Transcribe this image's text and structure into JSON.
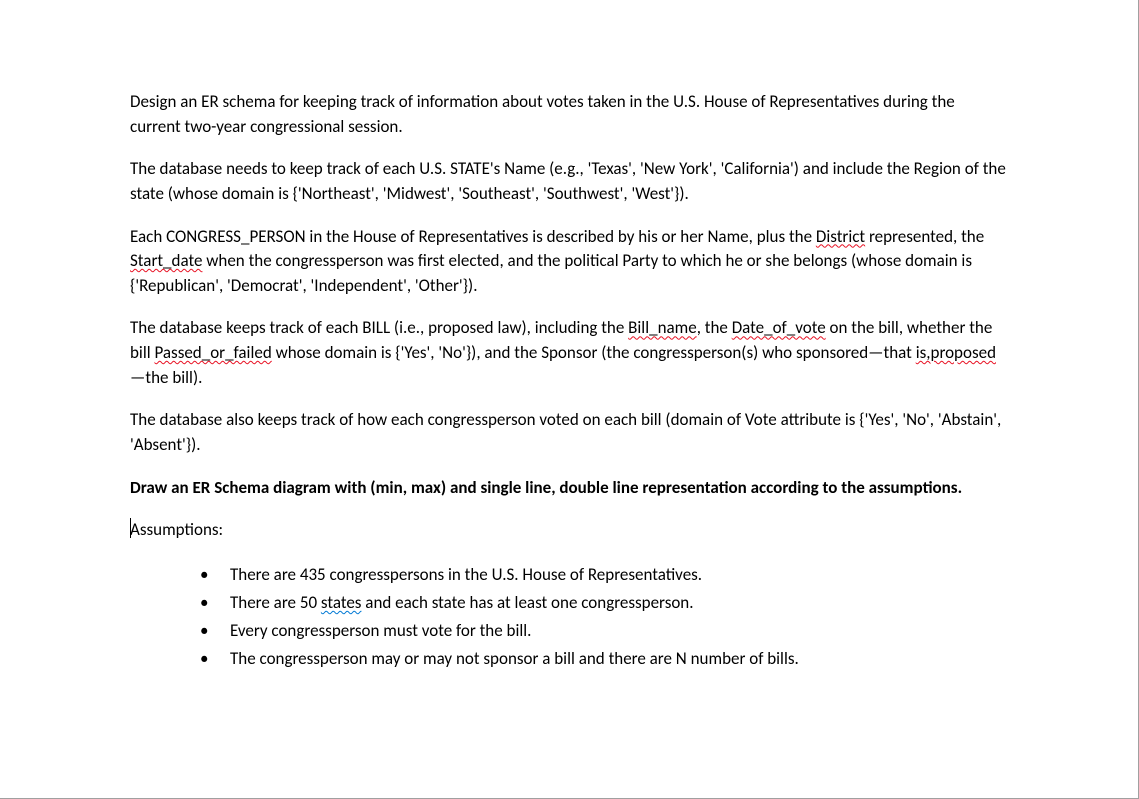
{
  "doc": {
    "font_family": "Calibri",
    "body_fontsize_pt": 11,
    "text_color": "#000000",
    "background_color": "#ffffff",
    "squiggle_red": "#e81123",
    "squiggle_blue": "#0078d4",
    "page_border_color": "#a0a0a0",
    "p1_a": "Design an ER schema for keeping track of information about votes taken in the U.S. House of ",
    "p1_b": "Representatives during the current two-year congressional session.",
    "p2_a": "The database needs to keep track of each U.S. STATE's Name (e.g., 'Texas', 'New York', 'California') and ",
    "p2_b": "include the Region of the state (whose domain is {'Northeast', 'Midwest', 'Southeast', 'Southwest', ",
    "p2_c": "'West'}).",
    "p3_a": "Each CONGRESS_PERSON in the House of Representatives is described by his or her Name, plus the ",
    "p3_b": " represented, the ",
    "p3_c": " when the congressperson was first elected, and the political Party to ",
    "p3_d": "which he or she belongs (whose domain is {'Republican', 'Democrat', 'Independent', 'Other'}).",
    "p3_district": "District",
    "p3_startdate": "Start_date",
    "p4_a": "The database keeps track of each BILL (i.e., proposed law), including the ",
    "p4_billname": "Bill_name",
    "p4_b": ", the ",
    "p4_dov": "Date_of_vote",
    "p4_c": " on ",
    "p4_d": "the bill, whether the bill ",
    "p4_pof": "Passed_or_failed",
    "p4_e": " whose domain is {'Yes', 'No'}), and the Sponsor (the ",
    "p4_f": "congressperson(s) who sponsored—that ",
    "p4_isproposed": "is,proposed",
    "p4_g": "—the bill).",
    "p5_a": "The database also keeps track of how each congressperson voted on each bill (domain of Vote attribute ",
    "p5_b": "is {'Yes', 'No', 'Abstain', 'Absent'}).",
    "p6_a": "Draw an ER Schema diagram with (min, max) and single line, double line representation according to ",
    "p6_b": "the assumptions.",
    "p7": "Assumptions:",
    "li1": "There are 435 congresspersons in the U.S. House of Representatives.",
    "li2_a": "There are 50 ",
    "li2_states": "states",
    "li2_b": " and each state has at least one congressperson.",
    "li3": "Every congressperson must vote for the bill.",
    "li4": "The congressperson may or may not sponsor a bill and there are N number of bills."
  }
}
